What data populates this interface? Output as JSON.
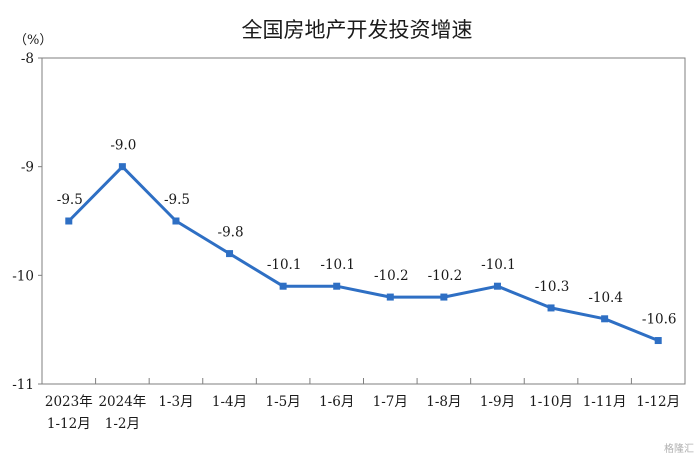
{
  "chart_data": {
    "type": "line",
    "title": "全国房地产开发投资增速",
    "unit": "（%）",
    "categories": [
      [
        "2023年",
        "1-12月"
      ],
      [
        "2024年",
        "1-2月"
      ],
      [
        "1-3月"
      ],
      [
        "1-4月"
      ],
      [
        "1-5月"
      ],
      [
        "1-6月"
      ],
      [
        "1-7月"
      ],
      [
        "1-8月"
      ],
      [
        "1-9月"
      ],
      [
        "1-10月"
      ],
      [
        "1-11月"
      ],
      [
        "1-12月"
      ]
    ],
    "values": [
      -9.5,
      -9.0,
      -9.5,
      -9.8,
      -10.1,
      -10.1,
      -10.2,
      -10.2,
      -10.1,
      -10.3,
      -10.4,
      -10.6
    ],
    "data_labels": [
      "-9.5",
      "-9.0",
      "-9.5",
      "-9.8",
      "-10.1",
      "-10.1",
      "-10.2",
      "-10.2",
      "-10.1",
      "-10.3",
      "-10.4",
      "-10.6"
    ],
    "ylim": [
      -11,
      -8
    ],
    "yticks": [
      -8,
      -9,
      -10,
      -11
    ],
    "grid": false,
    "legend": "none",
    "colors": {
      "line": "#2e6fc4",
      "axis": "#7f7f7f",
      "text": "#1a1a1a"
    }
  },
  "watermark": "格隆汇"
}
